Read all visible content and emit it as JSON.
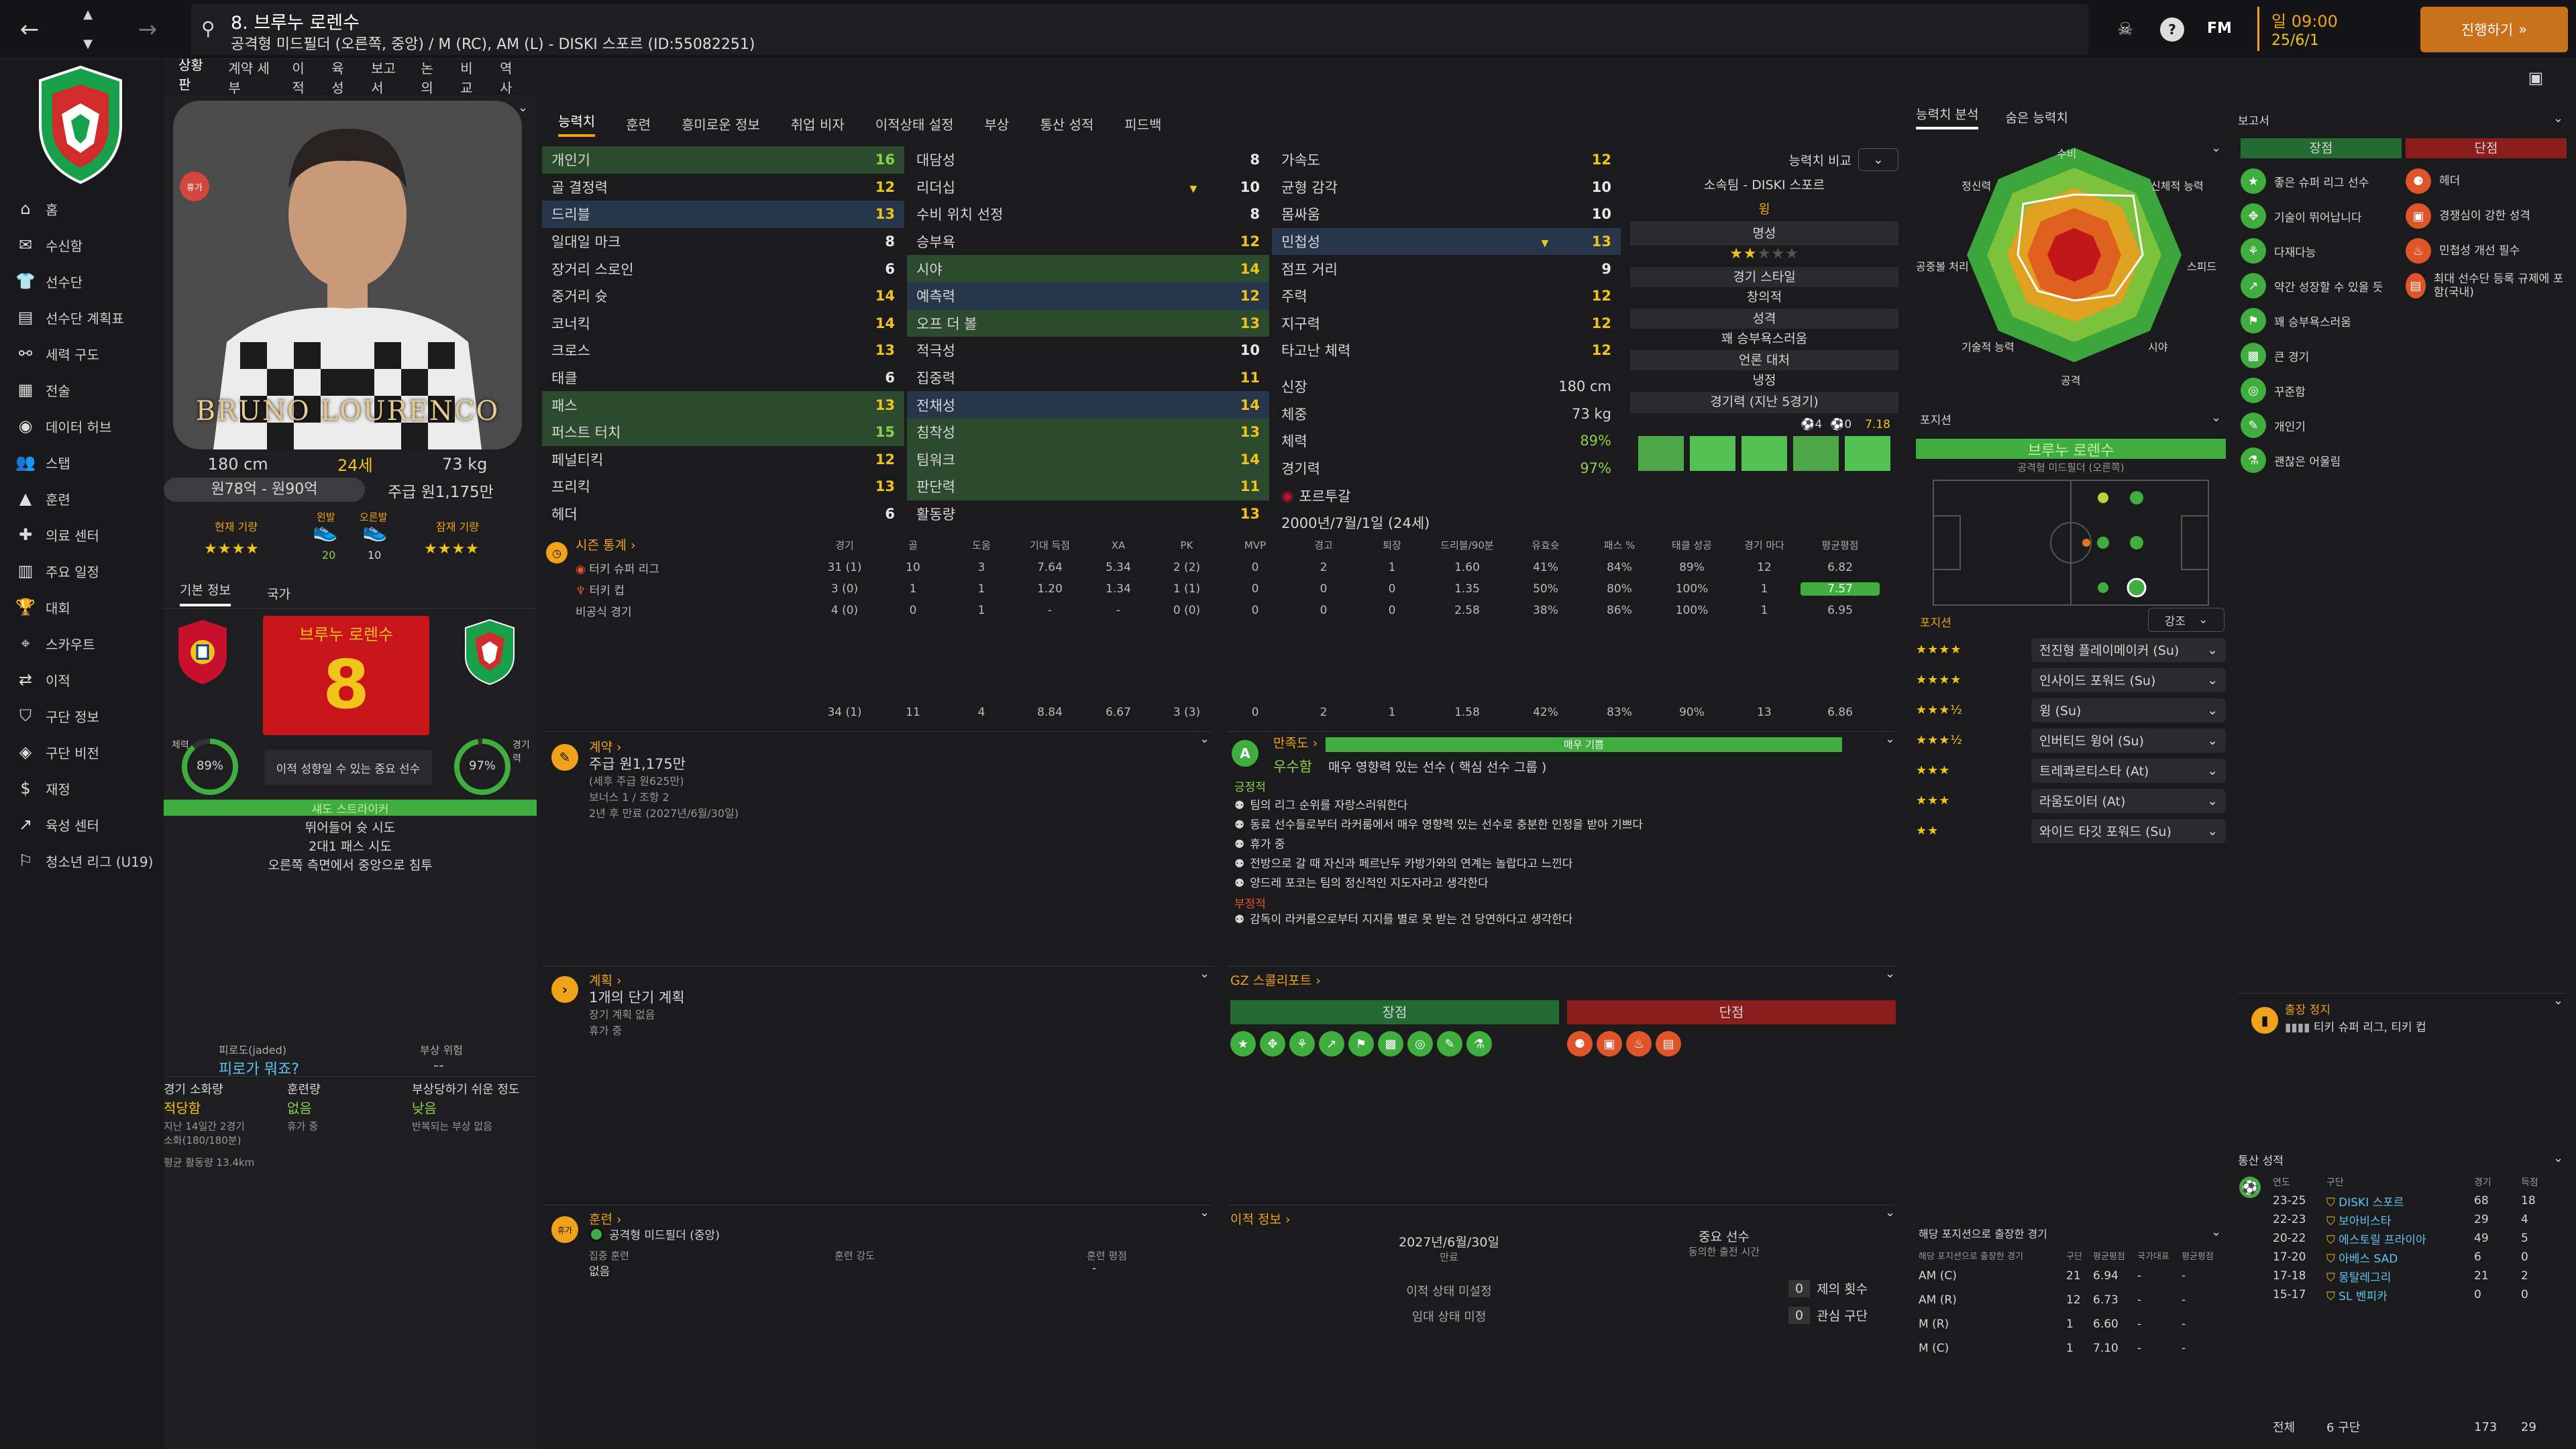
{
  "header": {
    "player_title": "8. 브루누 로렌수",
    "player_subtitle": "공격형 미드필더 (오른쪽, 중앙) / M (RC), AM (L) - DISKI 스포르 (ID:55082251)",
    "time": "일 09:00",
    "date": "25/6/1",
    "continue_label": "진행하기",
    "fm_label": "FM"
  },
  "sidebar": {
    "items": [
      "홈",
      "수신함",
      "선수단",
      "선수단 계획표",
      "세력 구도",
      "전술",
      "데이터 허브",
      "스탭",
      "훈련",
      "의료 센터",
      "주요 일정",
      "대회",
      "스카우트",
      "이적",
      "구단 정보",
      "구단 비전",
      "재정",
      "육성 센터",
      "청소년 리그 (U19)"
    ]
  },
  "subnav": [
    "상황판",
    "계약 세부",
    "이적",
    "육성",
    "보고서",
    "논의",
    "비교",
    "역사"
  ],
  "profile": {
    "height": "180 cm",
    "age": "24세",
    "weight": "73 kg",
    "value": "원78억 - 원90억",
    "wage": "주급 원1,175만",
    "current_ability_label": "현재 기량",
    "potential_ability_label": "잠재 기량",
    "left_foot_label": "왼발",
    "right_foot_label": "오른발",
    "left_foot_val": "20",
    "right_foot_val": "10",
    "shirt_name": "BRUNO LOURENCO",
    "kit_name": "브루누 로렌수",
    "kit_number": "8",
    "fitness": "89%",
    "sharpness": "97%",
    "fitness_label": "체력",
    "sharpness_label": "경기력",
    "status_text": "이적 성향일 수 있는 중요 선수",
    "tab_basic": "기본 정보",
    "tab_nation": "국가",
    "role_label": "섀도 스트라이커",
    "traits": [
      "뛰어들어 슛 시도",
      "2대1 패스 시도",
      "오른쪽 측면에서 중앙으로 침투"
    ],
    "injury_risk_label": "부상 위험",
    "fatigue_label": "피로도(jaded)",
    "fatigue_question": "피로가 뭐죠?",
    "match_load_label": "경기 소화량",
    "match_load_val": "적당함",
    "training_load_label": "훈련량",
    "training_load_val": "없음",
    "injury_prone_label": "부상당하기 쉬운 정도",
    "injury_prone_val": "낮음",
    "load_note": "지난 14일간 2경기\n소화(180/180분)",
    "training_note": "휴가 중",
    "injury_note": "반복되는 부상 없음",
    "avg_distance": "평균 활동량 13.4km"
  },
  "tabs": [
    "능력치",
    "훈련",
    "흥미로운 정보",
    "취업 비자",
    "이적상태 설정",
    "부상",
    "통산 성적",
    "피드백"
  ],
  "attributes": {
    "col1": [
      [
        "개인기",
        "16"
      ],
      [
        "골 결정력",
        "12"
      ],
      [
        "드리블",
        "13"
      ],
      [
        "일대일 마크",
        "8"
      ],
      [
        "장거리 스로인",
        "6"
      ],
      [
        "중거리 슛",
        "14"
      ],
      [
        "코너킥",
        "14"
      ],
      [
        "크로스",
        "13"
      ],
      [
        "태클",
        "6"
      ],
      [
        "패스",
        "13"
      ],
      [
        "퍼스트 터치",
        "15"
      ],
      [
        "페널티킥",
        "12"
      ],
      [
        "프리킥",
        "13"
      ],
      [
        "헤더",
        "6"
      ]
    ],
    "col2": [
      [
        "대담성",
        "8"
      ],
      [
        "리더십",
        "10"
      ],
      [
        "수비 위치 선정",
        "8"
      ],
      [
        "승부욕",
        "12"
      ],
      [
        "시야",
        "14"
      ],
      [
        "예측력",
        "12"
      ],
      [
        "오프 더 볼",
        "13"
      ],
      [
        "적극성",
        "10"
      ],
      [
        "집중력",
        "11"
      ],
      [
        "전채성",
        "14"
      ],
      [
        "침착성",
        "13"
      ],
      [
        "팀워크",
        "14"
      ],
      [
        "판단력",
        "11"
      ],
      [
        "활동량",
        "13"
      ]
    ],
    "col3": [
      [
        "가속도",
        "12"
      ],
      [
        "균형 감각",
        "10"
      ],
      [
        "몸싸움",
        "10"
      ],
      [
        "민첩성",
        "13"
      ],
      [
        "점프 거리",
        "9"
      ],
      [
        "주력",
        "12"
      ],
      [
        "지구력",
        "12"
      ],
      [
        "타고난 체력",
        "12"
      ]
    ],
    "height": "180 cm",
    "height_label": "신장",
    "weight": "73 kg",
    "weight_label": "체중",
    "fitness": "89%",
    "fitness_label": "체력",
    "sharp": "97%",
    "sharp_label": "경기력",
    "nation": "포르투갈",
    "dob": "2000년/7월/1일 (24세)"
  },
  "compare": {
    "label": "능력치 비교",
    "club": "소속팀 - DISKI 스포르",
    "club_role": "윙",
    "reputation_label": "명성",
    "style_label": "경기 스타일",
    "style_val": "창의적",
    "personality_label": "성격",
    "personality_val": "꽤 승부욕스러움",
    "media_label": "언론 대처",
    "media_val": "냉정",
    "form_label": "경기력 (지난 5경기)",
    "form_goals": "4",
    "form_assists": "0",
    "form_rating": "7.18"
  },
  "season": {
    "title": "시즌 통계",
    "headers": [
      "경기",
      "골",
      "도움",
      "기대 득점",
      "XA",
      "PK",
      "MVP",
      "경고",
      "퇴장",
      "드리블/90분",
      "유효슛",
      "패스 %",
      "태클 성공",
      "경기 마다",
      "평균평점"
    ],
    "rows": [
      {
        "comp": "터키 슈퍼 리그",
        "vals": [
          "31 (1)",
          "10",
          "3",
          "7.64",
          "5.34",
          "2 (2)",
          "0",
          "2",
          "1",
          "1.60",
          "41%",
          "84%",
          "89%",
          "12",
          "6.82"
        ]
      },
      {
        "comp": "터키 컵",
        "vals": [
          "3 (0)",
          "1",
          "1",
          "1.20",
          "1.34",
          "1 (1)",
          "0",
          "0",
          "0",
          "1.35",
          "50%",
          "80%",
          "100%",
          "1",
          "7.57"
        ]
      },
      {
        "comp": "비공식 경기",
        "vals": [
          "4 (0)",
          "0",
          "1",
          "-",
          "-",
          "0 (0)",
          "0",
          "0",
          "0",
          "2.58",
          "38%",
          "86%",
          "100%",
          "1",
          "6.95"
        ]
      }
    ],
    "total": [
      "34 (1)",
      "11",
      "4",
      "8.84",
      "6.67",
      "3 (3)",
      "0",
      "2",
      "1",
      "1.58",
      "42%",
      "83%",
      "90%",
      "13",
      "6.86"
    ]
  },
  "contract": {
    "title": "계약",
    "wage": "주급 원1,175만",
    "wage_note": "(세후 주급 원625만)",
    "bonus": "보너스 1 / 조항 2",
    "expiry": "2년 후 만료 (2027년/6월/30일)"
  },
  "satisfaction": {
    "title": "만족도",
    "bar_label": "매우 기쁨",
    "grade": "우수함",
    "grade_note": "매우 영향력 있는 선수 ( 핵심 선수 그룹 )",
    "positive_label": "긍정적",
    "positives": [
      "팀의 리그 순위를 자랑스러워한다",
      "동료 선수들로부터 라커룸에서 매우 영향력 있는 선수로 충분한 인정을 받아 기쁘다",
      "휴가 중",
      "전방으로 갈 때 자신과 페르난두 카방가와의 연계는 놀랍다고 느낀다",
      "양드레 포코는 팀의 정신적인 지도자라고 생각한다"
    ],
    "negative_label": "부정적",
    "negatives": [
      "감독이 라커룸으로부터 지지를 별로 못 받는 건 당연하다고 생각한다"
    ]
  },
  "plans": {
    "title": "계획",
    "value": "1개의 단기 계획",
    "note1": "장기 계획 없음",
    "note2": "휴가 중"
  },
  "scout": {
    "title": "GZ 스콜리포트",
    "strength_label": "장점",
    "weakness_label": "단점"
  },
  "training": {
    "title": "훈련",
    "role": "공격형 미드필더 (중앙)",
    "focus_label": "집중 훈련",
    "focus_val": "없음",
    "intensity_label": "훈련 강도",
    "rating_label": "훈련 평점",
    "rating_val": "-"
  },
  "transfer": {
    "title": "이적 정보",
    "expiry": "2027년/6월/30일",
    "expiry_label": "만료",
    "status_label": "중요 선수",
    "status_note": "동의한 출전 시간",
    "transfer_status": "이적 상태 미설정",
    "loan_status": "임대 상태 미정",
    "offers_count": "0",
    "offers_label": "제의 횟수",
    "interest_count": "0",
    "interest_label": "관심 구단"
  },
  "analysis": {
    "tab1": "능력치 분석",
    "tab2": "숨은 능력치",
    "labels": [
      "수비",
      "신체적 능력",
      "스피드",
      "시야",
      "공격",
      "기술적 능력",
      "공중볼 처리",
      "정신력"
    ]
  },
  "positions": {
    "title": "포지션",
    "name": "브루누 로렌수",
    "role": "공격형 미드필더 (오른쪽)",
    "list_title": "포지션",
    "sort_label": "강조",
    "roles": [
      {
        "stars": "★★★★",
        "name": "전진형 플레이메이커 (Su)"
      },
      {
        "stars": "★★★★",
        "name": "인사이드 포워드 (Su)"
      },
      {
        "stars": "★★★½",
        "name": "윙 (Su)"
      },
      {
        "stars": "★★★½",
        "name": "인버티드 윙어 (Su)"
      },
      {
        "stars": "★★★",
        "name": "트레콰르티스타 (At)"
      },
      {
        "stars": "★★★",
        "name": "라움도이터 (At)"
      },
      {
        "stars": "★★",
        "name": "와이드 타깃 포워드 (Su)"
      }
    ],
    "played_title": "해당 포지션으로 출장한 경기",
    "played_headers": [
      "해당 포지션으로 출장한 경기",
      "구단",
      "평균평점",
      "국가대표",
      "평균평점"
    ],
    "played": [
      [
        "AM (C)",
        "21",
        "6.94",
        "-",
        "-"
      ],
      [
        "AM (R)",
        "12",
        "6.73",
        "-",
        "-"
      ],
      [
        "M (R)",
        "1",
        "6.60",
        "-",
        "-"
      ],
      [
        "M (C)",
        "1",
        "7.10",
        "-",
        "-"
      ]
    ]
  },
  "report": {
    "title": "보고서",
    "strength_label": "장점",
    "weakness_label": "단점",
    "strengths": [
      "좋은 슈퍼 리그 선수",
      "기술이 뛰어납니다",
      "다재다능",
      "약간 성장할 수 있을 듯",
      "꽤 승부욕스러움",
      "큰 경기",
      "꾸준함",
      "개인기",
      "괜찮은 어울림"
    ],
    "weaknesses": [
      "헤더",
      "경쟁심이 강한 성격",
      "민첩성 개선 필수",
      "최대 선수단 등록 규제에 포함(국내)"
    ]
  },
  "suspension": {
    "title": "출장 정지",
    "text": "티키 슈퍼 리그, 티키 컵"
  },
  "career": {
    "title": "통산 성적",
    "headers": [
      "연도",
      "구단",
      "경기",
      "득점"
    ],
    "rows": [
      [
        "23-25",
        "DISKI 스포르",
        "68",
        "18"
      ],
      [
        "22-23",
        "보아비스타",
        "29",
        "4"
      ],
      [
        "20-22",
        "에스토릴 프라이아",
        "49",
        "5"
      ],
      [
        "17-20",
        "아베스 SAD",
        "6",
        "0"
      ],
      [
        "17-18",
        "몽탈레그리",
        "21",
        "2"
      ],
      [
        "15-17",
        "SL 벤피카",
        "0",
        "0"
      ]
    ],
    "total_label": "전체",
    "total_clubs": "6 구단",
    "total_games": "173",
    "total_goals": "29"
  }
}
